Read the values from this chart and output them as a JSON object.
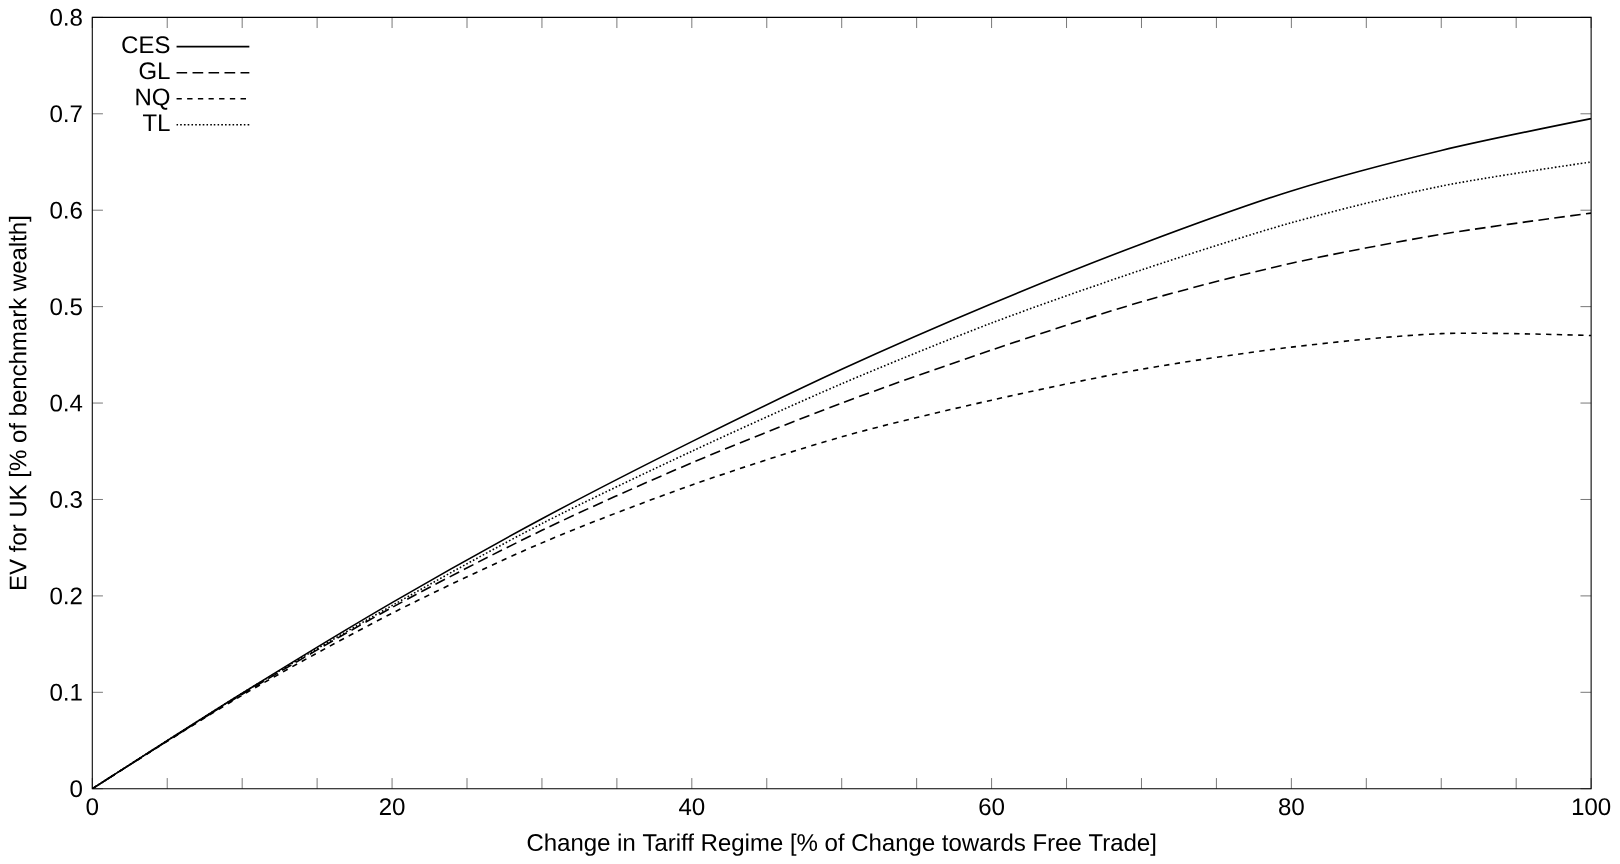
{
  "chart_data": {
    "type": "line",
    "xlabel": "Change in Tariff Regime [% of Change towards Free Trade]",
    "ylabel": "EV for UK [% of benchmark wealth]",
    "x": [
      0,
      10,
      20,
      30,
      40,
      50,
      60,
      70,
      80,
      90,
      100
    ],
    "series": [
      {
        "name": "CES",
        "color": "#000000",
        "line_style": "solid",
        "values": [
          0,
          0.099,
          0.193,
          0.28,
          0.36,
          0.435,
          0.503,
          0.565,
          0.62,
          0.662,
          0.695
        ]
      },
      {
        "name": "GL",
        "color": "#000000",
        "line_style": "dashed",
        "values": [
          0,
          0.098,
          0.188,
          0.268,
          0.338,
          0.4,
          0.455,
          0.505,
          0.545,
          0.575,
          0.597
        ]
      },
      {
        "name": "NQ",
        "color": "#000000",
        "line_style": "densely dashed",
        "values": [
          0,
          0.097,
          0.182,
          0.255,
          0.315,
          0.365,
          0.403,
          0.435,
          0.458,
          0.472,
          0.47
        ]
      },
      {
        "name": "TL",
        "color": "#000000",
        "line_style": "dotted",
        "values": [
          0,
          0.099,
          0.19,
          0.275,
          0.35,
          0.42,
          0.483,
          0.538,
          0.587,
          0.625,
          0.65
        ]
      }
    ],
    "xlim": [
      0,
      100
    ],
    "xticks": [
      0,
      20,
      40,
      60,
      80,
      100
    ],
    "ylim": [
      0,
      0.8
    ],
    "yticks": [
      0,
      0.1,
      0.2,
      0.3,
      0.4,
      0.5,
      0.6,
      0.7,
      0.8
    ],
    "legend": "top left",
    "marker": "none",
    "grid": false
  }
}
